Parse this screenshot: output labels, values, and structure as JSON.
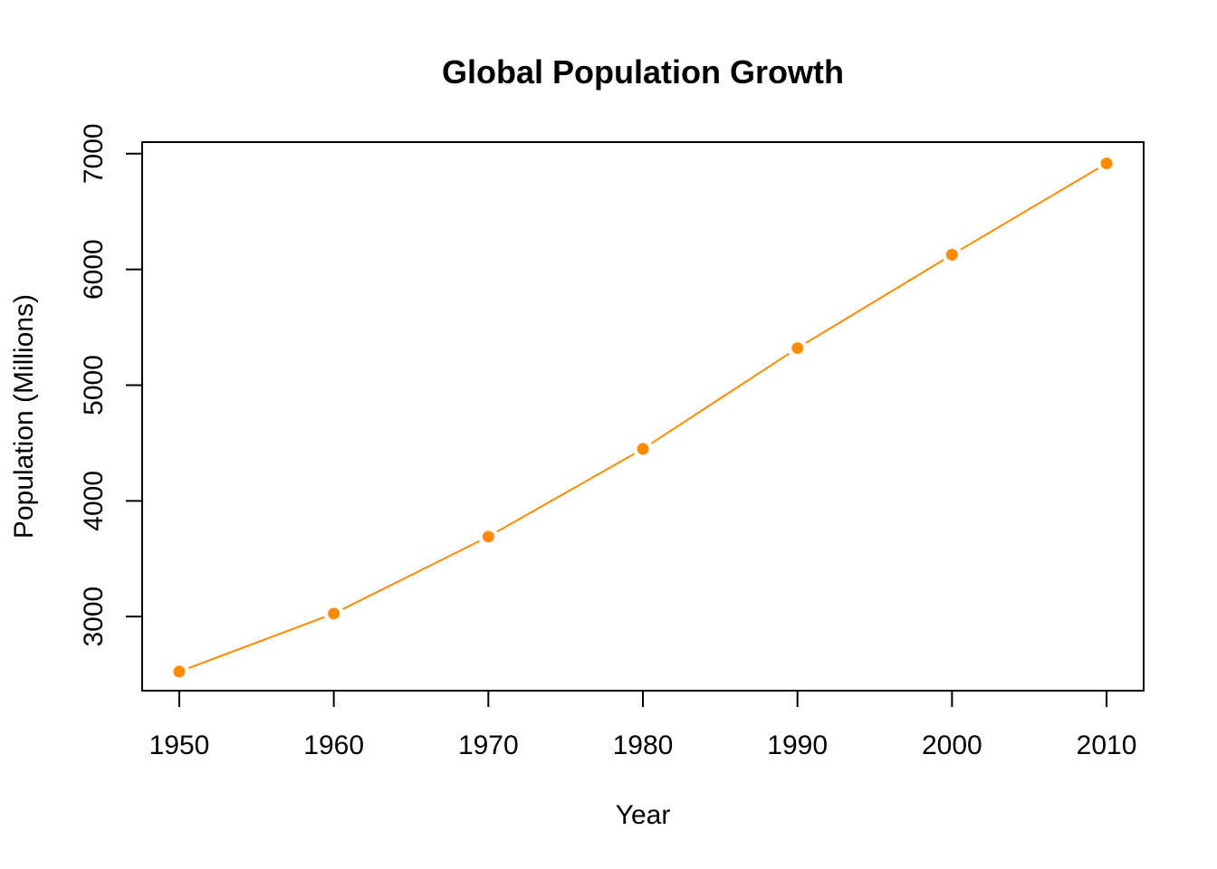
{
  "chart_data": {
    "type": "line",
    "title": "Global Population Growth",
    "xlabel": "Year",
    "ylabel": "Population (Millions)",
    "x": [
      1950,
      1960,
      1970,
      1980,
      1990,
      2000,
      2010
    ],
    "series": [
      {
        "values": [
          2525,
          3026,
          3691,
          4449,
          5320,
          6127,
          6916
        ]
      }
    ],
    "xticks": [
      1950,
      1960,
      1970,
      1980,
      1990,
      2000,
      2010
    ],
    "yticks": [
      3000,
      4000,
      5000,
      6000,
      7000
    ],
    "xlim": [
      1947.6,
      2012.4
    ],
    "ylim": [
      2360,
      7100
    ],
    "grid": false,
    "legend": "none",
    "colors": {
      "series": "#ff8c00",
      "axis": "#000000"
    },
    "line_style": "line with gaps at points",
    "marker": "filled-circle"
  }
}
